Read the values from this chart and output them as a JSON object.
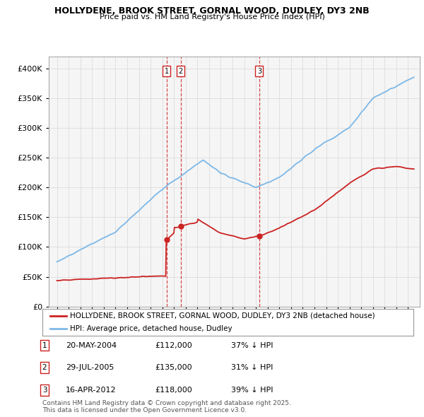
{
  "title": "HOLLYDENE, BROOK STREET, GORNAL WOOD, DUDLEY, DY3 2NB",
  "subtitle": "Price paid vs. HM Land Registry's House Price Index (HPI)",
  "ylim": [
    0,
    420000
  ],
  "yticks": [
    0,
    50000,
    100000,
    150000,
    200000,
    250000,
    300000,
    350000,
    400000
  ],
  "hpi_color": "#7cb8e8",
  "price_color": "#cc2222",
  "grid_color": "#dddddd",
  "bg_color": "#f5f5f5",
  "transactions": [
    {
      "label": "1",
      "date_str": "20-MAY-2004",
      "date_num": 2004.38,
      "price": 112000,
      "pct": "37%",
      "dir": "↓"
    },
    {
      "label": "2",
      "date_str": "29-JUL-2005",
      "date_num": 2005.58,
      "price": 135000,
      "pct": "31%",
      "dir": "↓"
    },
    {
      "label": "3",
      "date_str": "16-APR-2012",
      "date_num": 2012.29,
      "price": 118000,
      "pct": "39%",
      "dir": "↓"
    }
  ],
  "legend_price_label": "HOLLYDENE, BROOK STREET, GORNAL WOOD, DUDLEY, DY3 2NB (detached house)",
  "legend_hpi_label": "HPI: Average price, detached house, Dudley",
  "footnote": "Contains HM Land Registry data © Crown copyright and database right 2025.\nThis data is licensed under the Open Government Licence v3.0."
}
